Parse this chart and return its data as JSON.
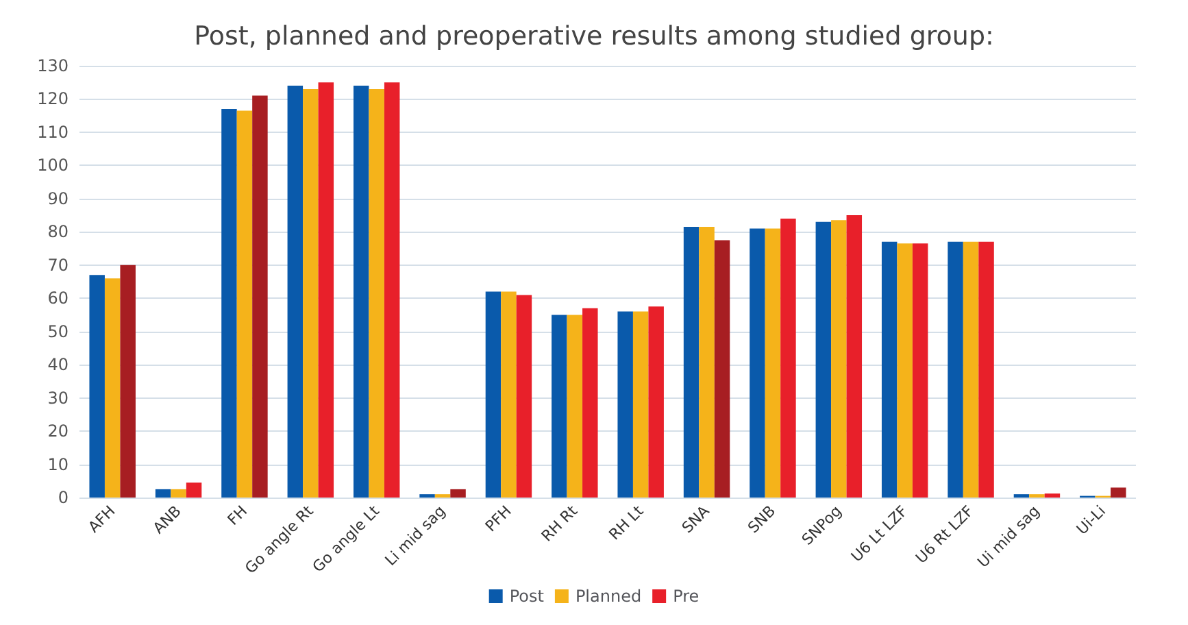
{
  "chart_data": {
    "type": "bar",
    "title": "Post, planned and preoperative results among studied group:",
    "categories": [
      "AFH",
      "ANB",
      "FH",
      "Go angle Rt",
      "Go angle Lt",
      "Li mid sag",
      "PFH",
      "RH Rt",
      "RH Lt",
      "SNA",
      "SNB",
      "SNPog",
      "U6 Lt LZF",
      "U6 Rt LZF",
      "Ui mid sag",
      "Ui-Li"
    ],
    "series": [
      {
        "name": "Post",
        "color": "#0a5aab",
        "values": [
          67,
          2.5,
          117,
          124,
          124,
          1,
          62,
          55,
          56,
          81.5,
          81,
          83,
          77,
          77,
          1,
          0.5
        ]
      },
      {
        "name": "Planned",
        "color": "#f5b31a",
        "values": [
          66,
          2.5,
          116.5,
          123,
          123,
          1,
          62,
          55,
          56,
          81.5,
          81,
          83.5,
          76.5,
          77,
          1,
          0.5
        ]
      },
      {
        "name": "Pre",
        "color": "#e8202a",
        "colors": [
          "#a71e22",
          "#e8202a",
          "#a71e22",
          "#e8202a",
          "#e8202a",
          "#a71e22",
          "#e8202a",
          "#e8202a",
          "#e8202a",
          "#a71e22",
          "#e8202a",
          "#e8202a",
          "#e8202a",
          "#e8202a",
          "#e8202a",
          "#a71e22"
        ],
        "values": [
          70,
          4.5,
          121,
          125,
          125,
          2.5,
          61,
          57,
          57.5,
          77.5,
          84,
          85,
          76.5,
          77,
          1.2,
          3
        ]
      }
    ],
    "ylim": [
      0,
      130
    ],
    "yticks": [
      0,
      10,
      20,
      30,
      40,
      50,
      60,
      70,
      80,
      90,
      100,
      110,
      120,
      130
    ],
    "grid": "y",
    "legend": "bottom"
  }
}
